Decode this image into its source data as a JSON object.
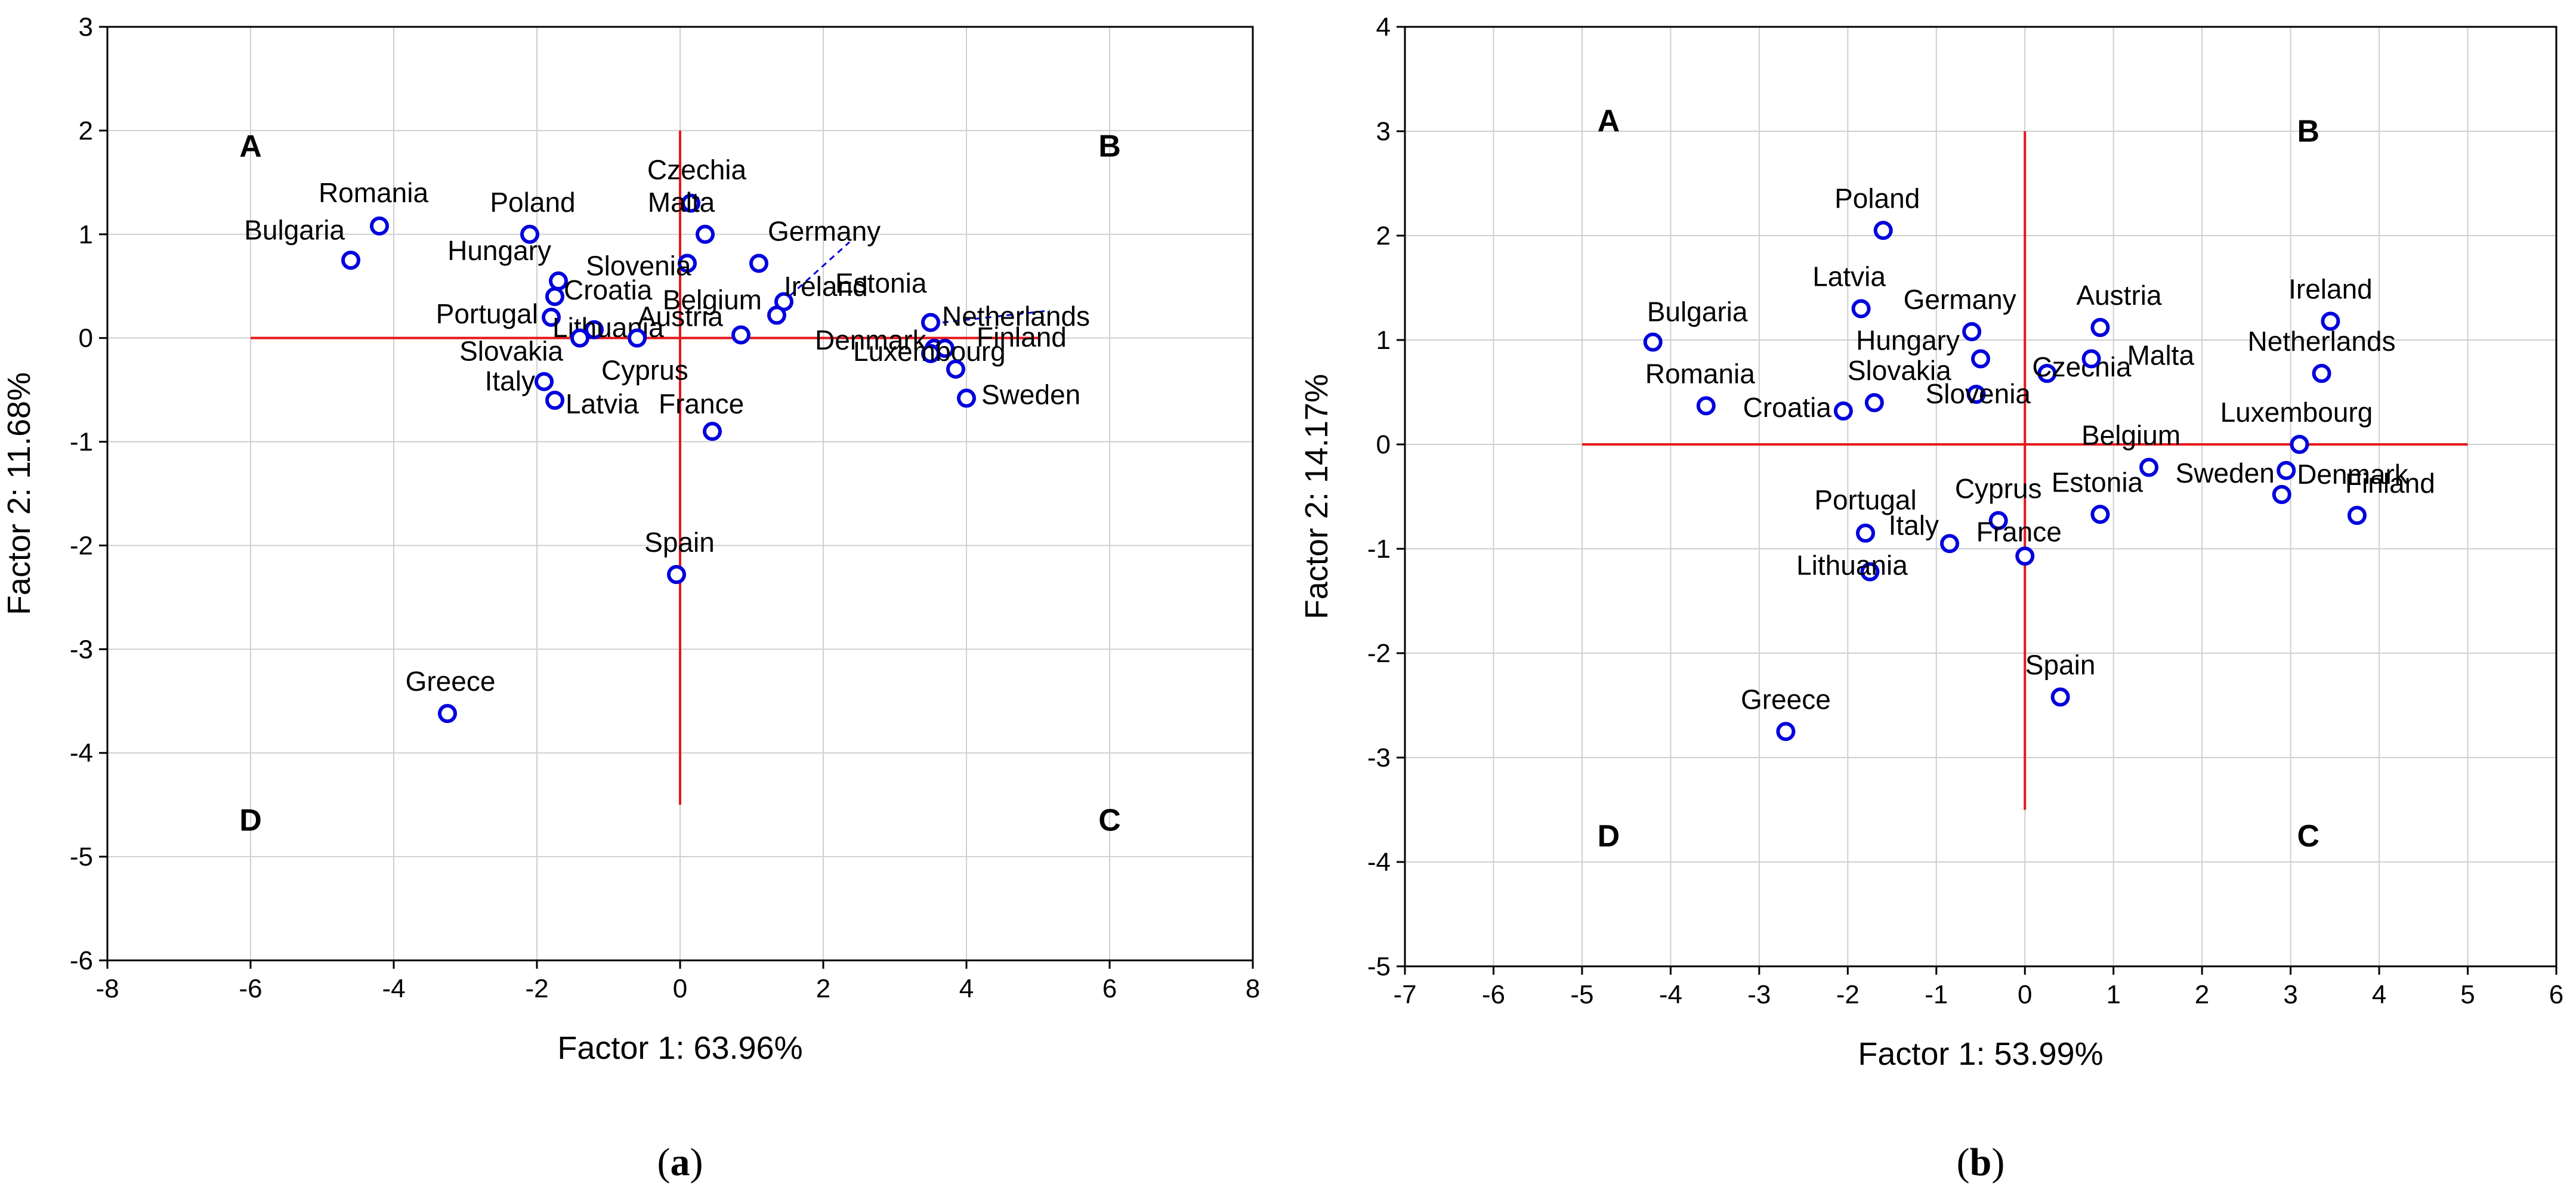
{
  "chart_data": [
    {
      "type": "scatter",
      "caption": "a",
      "xlabel": "Factor 1: 63.96%",
      "ylabel": "Factor 2: 11.68%",
      "xlim": [
        -8,
        8
      ],
      "ylim": [
        -6,
        3
      ],
      "xticks": [
        -8,
        -6,
        -4,
        -2,
        0,
        2,
        4,
        6,
        8
      ],
      "yticks": [
        -6,
        -5,
        -4,
        -3,
        -2,
        -1,
        0,
        1,
        2,
        3
      ],
      "grid": true,
      "crosshair": {
        "x_range": [
          -6,
          5
        ],
        "y_range": [
          -4.5,
          2
        ]
      },
      "quadrants": [
        {
          "label": "A",
          "x": -6,
          "y": 1.75
        },
        {
          "label": "B",
          "x": 6,
          "y": 1.75
        },
        {
          "label": "C",
          "x": 6,
          "y": -4.75
        },
        {
          "label": "D",
          "x": -6,
          "y": -4.75
        }
      ],
      "points": [
        {
          "label": "Bulgaria",
          "x": -4.6,
          "y": 0.75
        },
        {
          "label": "Romania",
          "x": -4.2,
          "y": 1.08
        },
        {
          "label": "Poland",
          "x": -2.1,
          "y": 1.0
        },
        {
          "label": "Hungary",
          "x": -1.7,
          "y": 0.55
        },
        {
          "label": "Croatia",
          "x": -1.75,
          "y": 0.4
        },
        {
          "label": "Portugal",
          "x": -1.8,
          "y": 0.2
        },
        {
          "label": "Lithuania",
          "x": -1.2,
          "y": 0.08
        },
        {
          "label": "Slovakia",
          "x": -1.4,
          "y": 0.0
        },
        {
          "label": "Cyprus",
          "x": -0.6,
          "y": 0.0
        },
        {
          "label": "Italy",
          "x": -1.9,
          "y": -0.42
        },
        {
          "label": "Latvia",
          "x": -1.75,
          "y": -0.6
        },
        {
          "label": "Czechia",
          "x": 0.15,
          "y": 1.3
        },
        {
          "label": "Malta",
          "x": 0.35,
          "y": 1.0
        },
        {
          "label": "Slovenia",
          "x": 0.1,
          "y": 0.72
        },
        {
          "label": "Germany",
          "x": 1.1,
          "y": 0.72
        },
        {
          "label": "Ireland",
          "x": 1.45,
          "y": 0.35
        },
        {
          "label": "Belgium",
          "x": 1.35,
          "y": 0.22
        },
        {
          "label": "Austria",
          "x": 0.85,
          "y": 0.03
        },
        {
          "label": "France",
          "x": 0.45,
          "y": -0.9
        },
        {
          "label": "Estonia",
          "x": 3.5,
          "y": 0.15
        },
        {
          "label": "Denmark",
          "x": 3.55,
          "y": -0.1
        },
        {
          "label": "Netherlands",
          "x": 3.7,
          "y": -0.1
        },
        {
          "label": "Luxembourg",
          "x": 3.5,
          "y": -0.15
        },
        {
          "label": "Finland",
          "x": 3.85,
          "y": -0.3
        },
        {
          "label": "Sweden",
          "x": 4.0,
          "y": -0.58
        },
        {
          "label": "Spain",
          "x": -0.05,
          "y": -2.28
        },
        {
          "label": "Greece",
          "x": -3.25,
          "y": -3.62
        }
      ]
    },
    {
      "type": "scatter",
      "caption": "b",
      "xlabel": "Factor 1: 53.99%",
      "ylabel": "Factor 2: 14.17%",
      "xlim": [
        -7,
        6
      ],
      "ylim": [
        -5,
        4
      ],
      "xticks": [
        -7,
        -6,
        -5,
        -4,
        -3,
        -2,
        -1,
        0,
        1,
        2,
        3,
        4,
        5,
        6
      ],
      "yticks": [
        -5,
        -4,
        -3,
        -2,
        -1,
        0,
        1,
        2,
        3,
        4
      ],
      "grid": true,
      "crosshair": {
        "x_range": [
          -5,
          5
        ],
        "y_range": [
          -3.5,
          3
        ]
      },
      "quadrants": [
        {
          "label": "A",
          "x": -4.7,
          "y": 3.0
        },
        {
          "label": "B",
          "x": 3.2,
          "y": 2.9
        },
        {
          "label": "C",
          "x": 3.2,
          "y": -3.85
        },
        {
          "label": "D",
          "x": -4.7,
          "y": -3.85
        }
      ],
      "points": [
        {
          "label": "Poland",
          "x": -1.6,
          "y": 2.05
        },
        {
          "label": "Latvia",
          "x": -1.85,
          "y": 1.3
        },
        {
          "label": "Bulgaria",
          "x": -4.2,
          "y": 0.98
        },
        {
          "label": "Romania",
          "x": -3.6,
          "y": 0.37
        },
        {
          "label": "Croatia",
          "x": -2.05,
          "y": 0.32
        },
        {
          "label": "Slovakia",
          "x": -1.7,
          "y": 0.4
        },
        {
          "label": "Germany",
          "x": -0.6,
          "y": 1.08
        },
        {
          "label": "Hungary",
          "x": -0.5,
          "y": 0.82
        },
        {
          "label": "Slovenia",
          "x": -0.55,
          "y": 0.48
        },
        {
          "label": "Austria",
          "x": 0.85,
          "y": 1.12
        },
        {
          "label": "Czechia",
          "x": 0.25,
          "y": 0.68
        },
        {
          "label": "Malta",
          "x": 0.75,
          "y": 0.82
        },
        {
          "label": "Ireland",
          "x": 3.45,
          "y": 1.18
        },
        {
          "label": "Netherlands",
          "x": 3.35,
          "y": 0.68
        },
        {
          "label": "Luxembourg",
          "x": 3.1,
          "y": 0.0
        },
        {
          "label": "Denmark",
          "x": 2.95,
          "y": -0.25
        },
        {
          "label": "Sweden",
          "x": 2.9,
          "y": -0.48
        },
        {
          "label": "Finland",
          "x": 3.75,
          "y": -0.68
        },
        {
          "label": "Belgium",
          "x": 1.4,
          "y": -0.22
        },
        {
          "label": "Estonia",
          "x": 0.85,
          "y": -0.67
        },
        {
          "label": "Cyprus",
          "x": -0.3,
          "y": -0.73
        },
        {
          "label": "France",
          "x": 0.0,
          "y": -1.07
        },
        {
          "label": "Italy",
          "x": -0.85,
          "y": -0.95
        },
        {
          "label": "Portugal",
          "x": -1.8,
          "y": -0.85
        },
        {
          "label": "Lithuania",
          "x": -1.75,
          "y": -1.22
        },
        {
          "label": "Spain",
          "x": 0.4,
          "y": -2.42
        },
        {
          "label": "Greece",
          "x": -2.7,
          "y": -2.75
        }
      ]
    }
  ],
  "colors": {
    "marker": "#0000dd",
    "crosshair": "#e8161b",
    "grid": "#cfcfcf",
    "axis": "#000000",
    "text": "#000000",
    "leader": "#0000dd"
  }
}
